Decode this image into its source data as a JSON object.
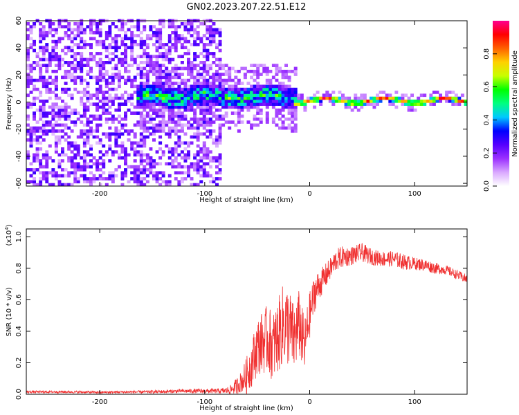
{
  "title": "GN02.2023.207.22.51.E12",
  "chart_data": [
    {
      "type": "heatmap",
      "xlabel": "Height of straight line (km)",
      "ylabel": "Frequency (Hz)",
      "xlim": [
        -270,
        150
      ],
      "ylim": [
        -62,
        60
      ],
      "xticks": [
        -200,
        -100,
        0,
        100
      ],
      "xtick_labels": [
        "-200",
        "-100",
        "0",
        "100"
      ],
      "yticks": [
        -60,
        -40,
        -20,
        0,
        20,
        40,
        60
      ],
      "ytick_labels": [
        "-60",
        "-40",
        "-20",
        "0",
        "20",
        "40",
        "60"
      ],
      "colorbar": {
        "label": "Normalized spectral amplitude",
        "range": [
          0,
          1
        ],
        "ticks": [
          0.0,
          0.2,
          0.4,
          0.6,
          0.8
        ],
        "tick_labels": [
          "0.0",
          "0.2",
          "0.4",
          "0.6",
          "0.8"
        ],
        "colors": [
          "#ffffff",
          "#d9a8ff",
          "#9b30ff",
          "#5500ff",
          "#0000ff",
          "#00c8ff",
          "#00ff80",
          "#00ff00",
          "#c8ff00",
          "#ffd000",
          "#ff6000",
          "#ff0000",
          "#ff0090"
        ]
      },
      "regions": [
        {
          "x_range": [
            -270,
            -85
          ],
          "freq_range": [
            -62,
            60
          ],
          "amplitude": "low (0.1-0.3), broadband noise"
        },
        {
          "x_range": [
            -165,
            -15
          ],
          "freq_center": 3,
          "freq_halfwidth": 8,
          "amplitude": "medium (0.3-0.7)"
        },
        {
          "x_range": [
            -15,
            150
          ],
          "freq_center": 0,
          "freq_halfwidth": 2,
          "amplitude": "high (0.8-1.0)"
        }
      ],
      "grid": false
    },
    {
      "type": "line",
      "xlabel": "Height of straight line (km)",
      "ylabel": "SNR (10 * v/v)",
      "multiplier_label": "(x10",
      "multiplier_exp": "4",
      "multiplier_close": ")",
      "xlim": [
        -270,
        150
      ],
      "ylim": [
        0,
        1.05
      ],
      "xticks": [
        -200,
        -100,
        0,
        100
      ],
      "xtick_labels": [
        "-200",
        "-100",
        "0",
        "100"
      ],
      "yticks": [
        0.0,
        0.2,
        0.4,
        0.6,
        0.8,
        1.0
      ],
      "ytick_labels": [
        "0.0",
        "0.2",
        "0.4",
        "0.6",
        "0.8",
        "1.0"
      ],
      "color": "#f03030",
      "series": [
        {
          "x": [
            -270,
            -250,
            -230,
            -200,
            -180,
            -150,
            -120,
            -100,
            -90,
            -80,
            -75,
            -70,
            -65,
            -60,
            -55,
            -50,
            -45,
            -40,
            -35,
            -30,
            -25,
            -20,
            -15,
            -10,
            -5,
            0,
            5,
            10,
            15,
            20,
            25,
            30,
            40,
            50,
            60,
            70,
            80,
            90,
            100,
            110,
            120,
            130,
            140,
            150
          ],
          "y": [
            0.015,
            0.015,
            0.015,
            0.012,
            0.014,
            0.015,
            0.02,
            0.02,
            0.02,
            0.022,
            0.03,
            0.05,
            0.08,
            0.12,
            0.2,
            0.3,
            0.33,
            0.35,
            0.3,
            0.37,
            0.45,
            0.43,
            0.35,
            0.45,
            0.3,
            0.5,
            0.65,
            0.7,
            0.75,
            0.8,
            0.85,
            0.87,
            0.88,
            0.9,
            0.87,
            0.86,
            0.86,
            0.84,
            0.83,
            0.82,
            0.8,
            0.79,
            0.76,
            0.73
          ],
          "noise": [
            0.008,
            0.008,
            0.008,
            0.008,
            0.008,
            0.01,
            0.012,
            0.015,
            0.015,
            0.02,
            0.03,
            0.05,
            0.07,
            0.12,
            0.15,
            0.18,
            0.2,
            0.22,
            0.22,
            0.24,
            0.26,
            0.26,
            0.22,
            0.22,
            0.18,
            0.15,
            0.12,
            0.09,
            0.08,
            0.07,
            0.07,
            0.07,
            0.06,
            0.06,
            0.05,
            0.05,
            0.05,
            0.05,
            0.04,
            0.04,
            0.035,
            0.03,
            0.03,
            0.03
          ]
        }
      ],
      "grid": false
    }
  ]
}
